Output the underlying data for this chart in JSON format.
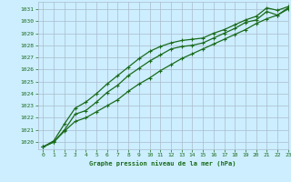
{
  "title": "Graphe pression niveau de la mer (hPa)",
  "background_color": "#cceeff",
  "grid_color": "#aabbcc",
  "line_color": "#1a6b1a",
  "xlim": [
    -0.5,
    23
  ],
  "ylim": [
    1019.4,
    1031.6
  ],
  "yticks": [
    1020,
    1021,
    1022,
    1023,
    1024,
    1025,
    1026,
    1027,
    1028,
    1029,
    1030,
    1031
  ],
  "xticks": [
    0,
    1,
    2,
    3,
    4,
    5,
    6,
    7,
    8,
    9,
    10,
    11,
    12,
    13,
    14,
    15,
    16,
    17,
    18,
    19,
    20,
    21,
    22,
    23
  ],
  "series": [
    [
      1019.6,
      1020.1,
      1021.5,
      1022.8,
      1023.3,
      1024.0,
      1024.8,
      1025.5,
      1026.2,
      1026.9,
      1027.5,
      1027.9,
      1028.2,
      1028.4,
      1028.5,
      1028.6,
      1029.0,
      1029.3,
      1029.7,
      1030.1,
      1030.4,
      1031.1,
      1030.9,
      1031.2
    ],
    [
      1019.6,
      1020.0,
      1020.9,
      1021.7,
      1022.0,
      1022.5,
      1023.0,
      1023.5,
      1024.2,
      1024.8,
      1025.3,
      1025.9,
      1026.4,
      1026.9,
      1027.3,
      1027.7,
      1028.1,
      1028.5,
      1028.9,
      1029.3,
      1029.8,
      1030.2,
      1030.5,
      1031.1
    ],
    [
      1019.6,
      1020.0,
      1021.0,
      1022.3,
      1022.6,
      1023.3,
      1024.1,
      1024.7,
      1025.5,
      1026.1,
      1026.7,
      1027.2,
      1027.7,
      1027.9,
      1028.0,
      1028.2,
      1028.6,
      1029.0,
      1029.4,
      1029.9,
      1030.1,
      1030.8,
      1030.5,
      1031.0
    ]
  ],
  "ylabel_fontsize": 5.0,
  "xlabel_fontsize": 5.0,
  "tick_fontsize": 4.5,
  "linewidth": 0.9,
  "markersize": 3.5
}
